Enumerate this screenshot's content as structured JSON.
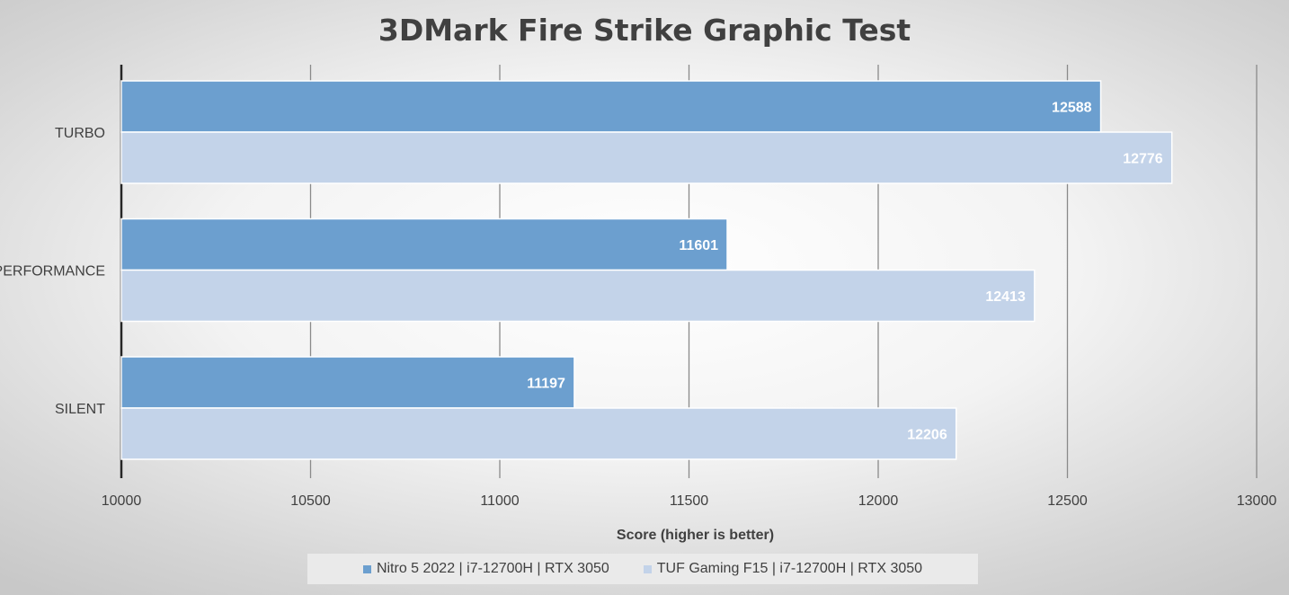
{
  "chart_data": {
    "type": "bar",
    "orientation": "horizontal",
    "title": "3DMark Fire Strike Graphic Test",
    "xlabel": "Score (higher is better)",
    "ylabel": "",
    "xlim": [
      10000,
      13000
    ],
    "xticks": [
      10000,
      10500,
      11000,
      11500,
      12000,
      12500,
      13000
    ],
    "categories": [
      "TURBO",
      "PERFORMANCE",
      "SILENT"
    ],
    "series": [
      {
        "name": "Nitro 5 2022 | i7-12700H | RTX 3050",
        "color": "#6c9fcf",
        "values": [
          12588,
          11601,
          11197
        ]
      },
      {
        "name": "TUF Gaming F15 | i7-12700H | RTX 3050",
        "color": "#c3d3e9",
        "values": [
          12776,
          12413,
          12206
        ]
      }
    ],
    "data_labels": true,
    "grid": "vertical",
    "legend_position": "bottom"
  }
}
